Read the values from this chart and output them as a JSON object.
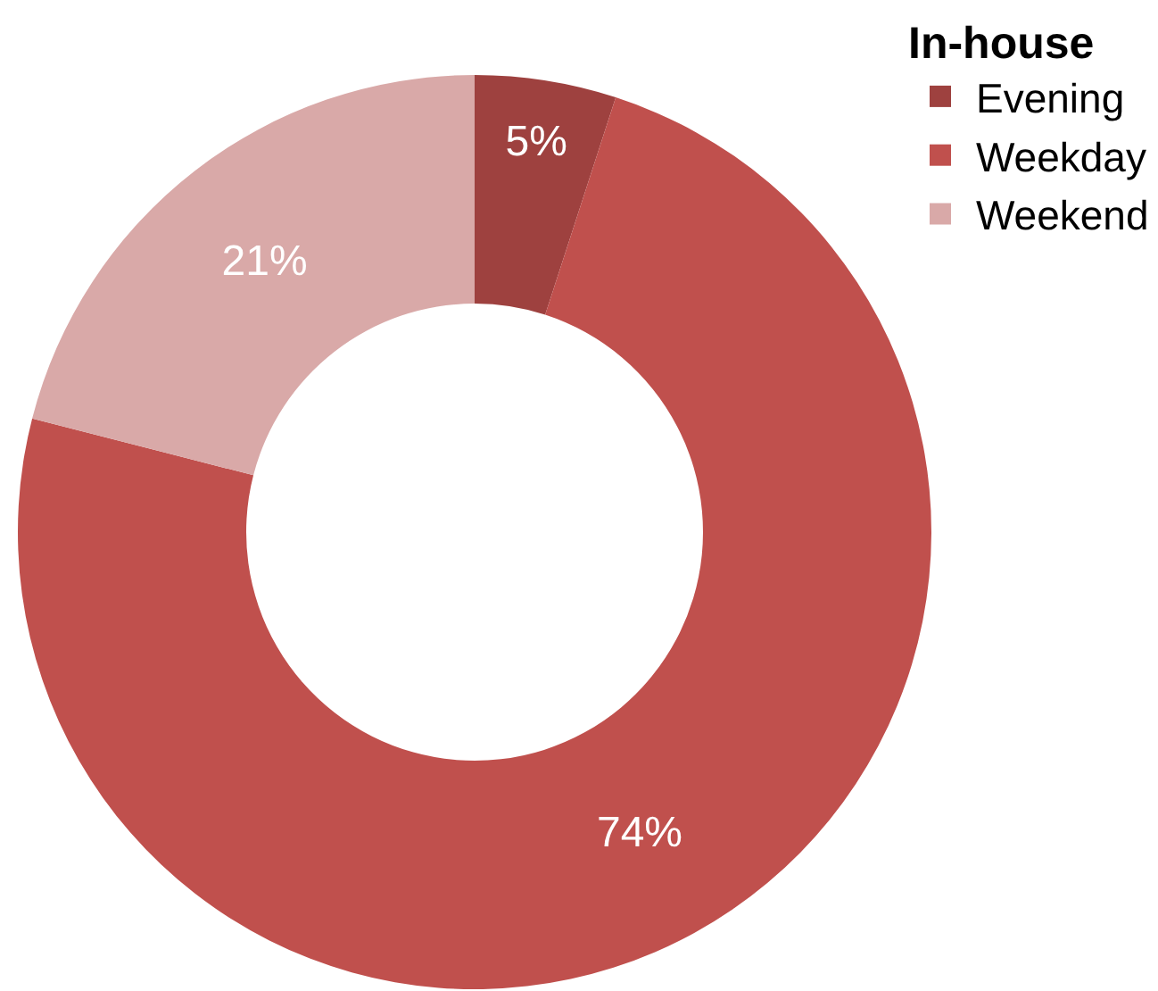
{
  "chart_data": {
    "type": "donut",
    "legend_title": "In-house",
    "categories": [
      "Evening",
      "Weekday",
      "Weekend"
    ],
    "values": [
      5,
      74,
      21
    ],
    "value_labels": [
      "5%",
      "74%",
      "21%"
    ],
    "colors": [
      "#9e413f",
      "#c0504d",
      "#d9a9a8"
    ],
    "legend": "top right"
  }
}
